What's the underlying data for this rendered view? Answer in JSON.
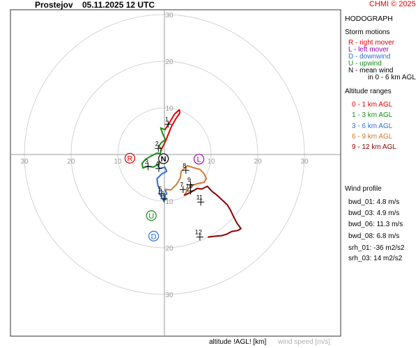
{
  "header": {
    "station": "Prostejov",
    "datetime": "05.11.2025 12 UTC",
    "copyright": "CHMI © 2025"
  },
  "panel": {
    "title": "HODOGRAPH",
    "storm_motions_title": "Storm motions",
    "storm_motions": [
      {
        "code": "R",
        "text": "R - right mover",
        "color": "#e00000"
      },
      {
        "code": "L",
        "text": "L - left mover",
        "color": "#9400b0"
      },
      {
        "code": "D",
        "text": "D - downwind",
        "color": "#2d6fd6"
      },
      {
        "code": "U",
        "text": "U - upwind",
        "color": "#1a8a1a"
      },
      {
        "code": "N",
        "text": "N - mean wind",
        "color": "#000000"
      }
    ],
    "mean_wind_note": "in 0 - 6 km AGL",
    "altitude_title": "Altitude ranges",
    "altitude_ranges": [
      {
        "text": "0 - 1 km AGL",
        "color": "#e00000"
      },
      {
        "text": "1 - 3 km AGL",
        "color": "#1a8a1a"
      },
      {
        "text": "3 - 6 km AGL",
        "color": "#2d6fd6"
      },
      {
        "text": "6 - 9 km AGL",
        "color": "#d07a30"
      },
      {
        "text": "9 - 12 km AGL",
        "color": "#8b0000"
      }
    ],
    "wind_profile_title": "Wind profile",
    "wind_profile": [
      "bwd_01: 4.8 m/s",
      "bwd_03: 4.9 m/s",
      "bwd_06: 11.3 m/s",
      "bwd_08: 6.8 m/s"
    ],
    "srh": [
      "srh_01: -36 m2/s2",
      "srh_03: 14 m2/s2"
    ]
  },
  "footer": {
    "altitude_label": "altitude !AGL! [km]",
    "speed_label": "wind speed [m/s]"
  },
  "chart_data": {
    "type": "line",
    "ring_labels": [
      "10",
      "20",
      "30"
    ],
    "rings": [
      10,
      20,
      30
    ],
    "axis_labels": {
      "left": [
        "30",
        "20",
        "10"
      ],
      "right": [
        "10",
        "20",
        "30"
      ]
    },
    "segments": [
      {
        "range": "0 - 1 km AGL",
        "color": "#e00000",
        "points": [
          [
            -0.8,
            0.8
          ],
          [
            -0.3,
            1.8
          ],
          [
            0.3,
            3.0
          ],
          [
            0.9,
            4.5
          ],
          [
            1.5,
            6.0
          ],
          [
            2.4,
            7.6
          ],
          [
            3.3,
            8.9
          ],
          [
            3.2,
            9.6
          ],
          [
            2.2,
            8.7
          ],
          [
            1.2,
            7.0
          ],
          [
            0.1,
            5.3
          ]
        ]
      },
      {
        "range": "1 - 3 km AGL",
        "color": "#1a8a1a",
        "points": [
          [
            0.1,
            5.3
          ],
          [
            -0.8,
            5.7
          ],
          [
            -0.3,
            4.3
          ],
          [
            0.2,
            3.2
          ],
          [
            -0.7,
            2.5
          ],
          [
            -1.2,
            1.8
          ],
          [
            -0.6,
            1.1
          ],
          [
            -0.9,
            0.2
          ],
          [
            -1.6,
            0.3
          ],
          [
            -3.0,
            -0.4
          ],
          [
            -4.0,
            -1.0
          ],
          [
            -4.8,
            -1.9
          ],
          [
            -4.6,
            -2.9
          ],
          [
            -3.6,
            -2.5
          ],
          [
            -2.4,
            -2.7
          ],
          [
            -1.4,
            -2.2
          ],
          [
            -1.0,
            -1.6
          ],
          [
            -1.3,
            -2.6
          ]
        ]
      },
      {
        "range": "3 - 6 km AGL",
        "color": "#2d6fd6",
        "points": [
          [
            -1.3,
            -2.6
          ],
          [
            -1.0,
            -3.0
          ],
          [
            0.1,
            -2.7
          ],
          [
            0.5,
            -3.6
          ],
          [
            -0.6,
            -4.2
          ],
          [
            -1.6,
            -5.2
          ],
          [
            -1.4,
            -6.6
          ],
          [
            -1.0,
            -7.5
          ],
          [
            -1.1,
            -8.3
          ],
          [
            -0.6,
            -9.2
          ],
          [
            -0.2,
            -9.8
          ],
          [
            0.3,
            -9.6
          ],
          [
            0.1,
            -8.7
          ],
          [
            0.5,
            -8.5
          ],
          [
            0.2,
            -7.5
          ]
        ]
      },
      {
        "range": "6 - 9 km AGL",
        "color": "#d07a30",
        "points": [
          [
            0.2,
            -7.5
          ],
          [
            1.4,
            -7.6
          ],
          [
            2.6,
            -6.4
          ],
          [
            3.4,
            -5.0
          ],
          [
            3.6,
            -3.6
          ],
          [
            4.9,
            -2.4
          ],
          [
            6.2,
            -2.8
          ],
          [
            7.6,
            -3.2
          ],
          [
            8.4,
            -4.0
          ],
          [
            9.0,
            -5.1
          ],
          [
            8.5,
            -6.0
          ],
          [
            7.3,
            -6.2
          ],
          [
            6.0,
            -6.6
          ],
          [
            4.9,
            -7.6
          ],
          [
            4.3,
            -8.7
          ]
        ]
      },
      {
        "range": "9 - 12 km AGL",
        "color": "#8b0000",
        "points": [
          [
            4.3,
            -8.7
          ],
          [
            5.8,
            -8.0
          ],
          [
            7.0,
            -7.3
          ],
          [
            8.0,
            -7.4
          ],
          [
            9.2,
            -6.8
          ],
          [
            10.2,
            -7.9
          ],
          [
            11.1,
            -8.6
          ],
          [
            12.0,
            -9.4
          ],
          [
            13.5,
            -10.8
          ],
          [
            14.2,
            -12.0
          ],
          [
            14.9,
            -13.5
          ],
          [
            15.6,
            -14.8
          ],
          [
            16.4,
            -15.9
          ],
          [
            15.7,
            -16.3
          ],
          [
            14.4,
            -16.5
          ],
          [
            13.3,
            -17.1
          ],
          [
            12.3,
            -17.4
          ],
          [
            11.0,
            -17.5
          ],
          [
            9.4,
            -17.7
          ]
        ]
      }
    ],
    "altitude_marks": [
      {
        "label": "1",
        "u": 0.8,
        "v": 6.5
      },
      {
        "label": "2",
        "u": -1.3,
        "v": 1.3
      },
      {
        "label": "3",
        "u": -3.5,
        "v": -2.6
      },
      {
        "label": "4",
        "u": -1.2,
        "v": -3.0
      },
      {
        "label": "5",
        "u": -0.6,
        "v": -8.4
      },
      {
        "label": "6",
        "u": -0.1,
        "v": -9.5
      },
      {
        "label": "7",
        "u": 4.0,
        "v": -7.5
      },
      {
        "label": "8",
        "u": 4.6,
        "v": -3.4
      },
      {
        "label": "9",
        "u": 5.6,
        "v": -6.5
      },
      {
        "label": "10",
        "u": 5.6,
        "v": -7.8
      },
      {
        "label": "11",
        "u": 7.8,
        "v": -10.2
      },
      {
        "label": "12",
        "u": 7.6,
        "v": -17.7
      }
    ],
    "storm_markers": [
      {
        "code": "R",
        "u": -7.4,
        "v": -0.8,
        "color": "#e00000"
      },
      {
        "code": "L",
        "u": 7.4,
        "v": -1.0,
        "color": "#9400b0"
      },
      {
        "code": "N",
        "u": -0.2,
        "v": -0.9,
        "color": "#000000"
      },
      {
        "code": "U",
        "u": -2.8,
        "v": -13.1,
        "color": "#1a8a1a"
      },
      {
        "code": "D",
        "u": -2.3,
        "v": -17.5,
        "color": "#2d6fd6"
      }
    ]
  }
}
